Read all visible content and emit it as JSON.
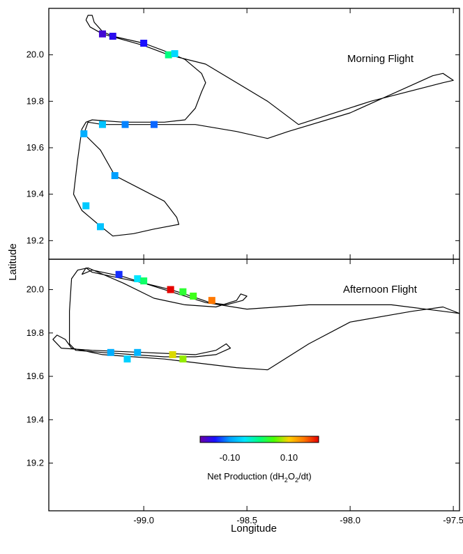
{
  "chart_data": {
    "type": "scatter",
    "xlabel": "Longitude",
    "ylabel": "Latitude",
    "xlim": [
      -99.46,
      -97.47
    ],
    "x_ticks": [
      -99.0,
      -98.5,
      -98.0,
      -97.5
    ],
    "x_tick_labels": [
      "-99.0",
      "-98.5",
      "-98.0",
      "-97.5"
    ],
    "y_ticks": [
      19.2,
      19.4,
      19.6,
      19.8,
      20.0
    ],
    "y_tick_labels": [
      "19.2",
      "19.4",
      "19.6",
      "19.8",
      "20.0"
    ],
    "legend_position": "bottom-center",
    "colorbar": {
      "title_text": "Net Production (dH",
      "title_sub1": "2",
      "title_mid": "O",
      "title_sub2": "2",
      "title_end": "/dt)",
      "range": [
        -0.2,
        0.2
      ],
      "ticks": [
        -0.1,
        0.1
      ],
      "tick_labels": [
        "-0.10",
        "0.10"
      ],
      "colors": [
        "#6a00a8",
        "#1a10ff",
        "#00a0ff",
        "#00e6ff",
        "#00ff80",
        "#4dff00",
        "#ffd000",
        "#ff7800",
        "#e60000"
      ]
    },
    "panels": [
      {
        "title": "Morning Flight",
        "ylim": [
          19.12,
          20.2
        ],
        "track": [
          [
            -99.28,
            20.15
          ],
          [
            -99.27,
            20.17
          ],
          [
            -99.25,
            20.17
          ],
          [
            -99.24,
            20.14
          ],
          [
            -99.2,
            20.1
          ],
          [
            -99.15,
            20.08
          ],
          [
            -99.0,
            20.05
          ],
          [
            -98.88,
            20.01
          ],
          [
            -98.8,
            19.98
          ],
          [
            -98.72,
            19.92
          ],
          [
            -98.7,
            19.88
          ],
          [
            -98.72,
            19.84
          ],
          [
            -98.75,
            19.77
          ],
          [
            -98.8,
            19.72
          ],
          [
            -98.9,
            19.71
          ],
          [
            -99.1,
            19.71
          ],
          [
            -99.25,
            19.72
          ],
          [
            -99.28,
            19.71
          ],
          [
            -99.3,
            19.68
          ],
          [
            -99.32,
            19.55
          ],
          [
            -99.34,
            19.4
          ],
          [
            -99.3,
            19.33
          ],
          [
            -99.22,
            19.27
          ],
          [
            -99.15,
            19.22
          ],
          [
            -99.05,
            19.23
          ],
          [
            -98.95,
            19.25
          ],
          [
            -98.83,
            19.27
          ],
          [
            -98.84,
            19.3
          ],
          [
            -98.9,
            19.37
          ],
          [
            -99.14,
            19.48
          ],
          [
            -99.21,
            19.59
          ],
          [
            -99.29,
            19.66
          ],
          [
            -99.27,
            19.71
          ],
          [
            -99.2,
            19.7
          ],
          [
            -98.95,
            19.7
          ],
          [
            -98.75,
            19.7
          ],
          [
            -98.55,
            19.67
          ],
          [
            -98.4,
            19.64
          ],
          [
            -98.3,
            19.67
          ],
          [
            -98.0,
            19.75
          ],
          [
            -97.6,
            19.91
          ],
          [
            -97.55,
            19.92
          ],
          [
            -97.5,
            19.89
          ],
          [
            -97.55,
            19.88
          ],
          [
            -97.9,
            19.8
          ],
          [
            -98.25,
            19.7
          ],
          [
            -98.4,
            19.8
          ],
          [
            -98.7,
            19.96
          ],
          [
            -98.88,
            20.0
          ],
          [
            -99.0,
            20.04
          ],
          [
            -99.2,
            20.09
          ],
          [
            -99.26,
            20.12
          ],
          [
            -99.28,
            20.15
          ]
        ],
        "points": [
          {
            "x": -99.2,
            "y": 20.09,
            "value": -0.175
          },
          {
            "x": -99.15,
            "y": 20.08,
            "value": -0.16
          },
          {
            "x": -99.0,
            "y": 20.05,
            "value": -0.15
          },
          {
            "x": -98.88,
            "y": 20.0,
            "value": 0.0
          },
          {
            "x": -98.85,
            "y": 20.005,
            "value": -0.06
          },
          {
            "x": -99.2,
            "y": 19.7,
            "value": -0.075
          },
          {
            "x": -99.09,
            "y": 19.7,
            "value": -0.11
          },
          {
            "x": -98.95,
            "y": 19.7,
            "value": -0.12
          },
          {
            "x": -99.29,
            "y": 19.66,
            "value": -0.09
          },
          {
            "x": -99.14,
            "y": 19.48,
            "value": -0.1
          },
          {
            "x": -99.28,
            "y": 19.35,
            "value": -0.07
          },
          {
            "x": -99.21,
            "y": 19.26,
            "value": -0.075
          }
        ]
      },
      {
        "title": "Afternoon Flight",
        "ylim": [
          18.98,
          20.14
        ],
        "track": [
          [
            -99.3,
            20.07
          ],
          [
            -99.28,
            20.1
          ],
          [
            -99.25,
            20.08
          ],
          [
            -99.15,
            20.06
          ],
          [
            -99.0,
            20.03
          ],
          [
            -98.87,
            20.0
          ],
          [
            -98.77,
            19.97
          ],
          [
            -98.68,
            19.94
          ],
          [
            -98.6,
            19.93
          ],
          [
            -98.52,
            19.95
          ],
          [
            -98.5,
            19.97
          ],
          [
            -98.53,
            19.98
          ],
          [
            -98.55,
            19.95
          ],
          [
            -98.65,
            19.92
          ],
          [
            -98.8,
            19.93
          ],
          [
            -98.95,
            19.96
          ],
          [
            -99.1,
            20.03
          ],
          [
            -99.27,
            20.1
          ],
          [
            -99.32,
            20.09
          ],
          [
            -99.35,
            20.05
          ],
          [
            -99.36,
            19.9
          ],
          [
            -99.36,
            19.75
          ],
          [
            -99.33,
            19.72
          ],
          [
            -99.2,
            19.71
          ],
          [
            -98.9,
            19.69
          ],
          [
            -98.75,
            19.69
          ],
          [
            -98.65,
            19.7
          ],
          [
            -98.58,
            19.73
          ],
          [
            -98.6,
            19.75
          ],
          [
            -98.65,
            19.72
          ],
          [
            -98.75,
            19.7
          ],
          [
            -99.0,
            19.71
          ],
          [
            -99.25,
            19.72
          ],
          [
            -99.4,
            19.73
          ],
          [
            -99.44,
            19.77
          ],
          [
            -99.42,
            19.79
          ],
          [
            -99.38,
            19.77
          ],
          [
            -99.35,
            19.73
          ],
          [
            -99.2,
            19.7
          ],
          [
            -98.9,
            19.68
          ],
          [
            -98.55,
            19.64
          ],
          [
            -98.4,
            19.63
          ],
          [
            -98.2,
            19.75
          ],
          [
            -98.0,
            19.85
          ],
          [
            -97.7,
            19.9
          ],
          [
            -97.55,
            19.92
          ],
          [
            -97.47,
            19.89
          ],
          [
            -97.55,
            19.9
          ],
          [
            -97.8,
            19.93
          ],
          [
            -98.2,
            19.93
          ],
          [
            -98.5,
            19.91
          ],
          [
            -98.7,
            19.94
          ],
          [
            -98.9,
            20.0
          ],
          [
            -99.1,
            20.06
          ],
          [
            -99.25,
            20.09
          ],
          [
            -99.3,
            20.07
          ]
        ],
        "points": [
          {
            "x": -99.12,
            "y": 20.07,
            "value": -0.14
          },
          {
            "x": -99.03,
            "y": 20.05,
            "value": -0.05
          },
          {
            "x": -99.0,
            "y": 20.04,
            "value": 0.01
          },
          {
            "x": -98.87,
            "y": 20.0,
            "value": 0.145
          },
          {
            "x": -98.87,
            "y": 20.0,
            "value": 0.2
          },
          {
            "x": -98.81,
            "y": 19.99,
            "value": 0.03
          },
          {
            "x": -98.76,
            "y": 19.97,
            "value": 0.04
          },
          {
            "x": -98.67,
            "y": 19.95,
            "value": 0.15
          },
          {
            "x": -99.16,
            "y": 19.71,
            "value": -0.09
          },
          {
            "x": -99.03,
            "y": 19.71,
            "value": -0.085
          },
          {
            "x": -99.08,
            "y": 19.68,
            "value": -0.065
          },
          {
            "x": -98.86,
            "y": 19.7,
            "value": 0.09
          },
          {
            "x": -98.81,
            "y": 19.68,
            "value": 0.07
          }
        ]
      }
    ]
  }
}
